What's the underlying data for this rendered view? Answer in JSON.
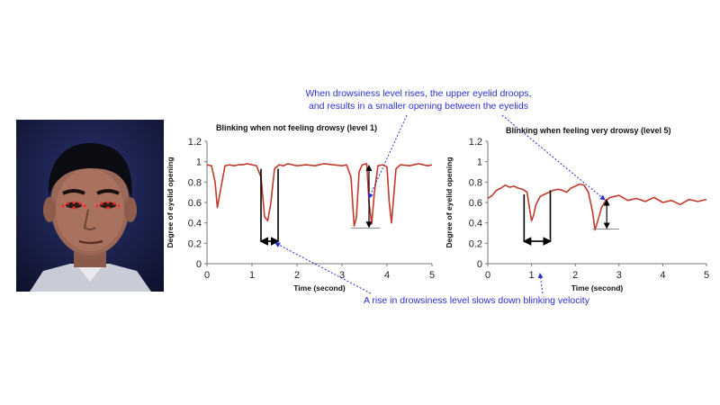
{
  "annotations": {
    "top_line1": "When drowsiness level rises, the upper eyelid droops,",
    "top_line2": "and results in a smaller opening between the eyelids",
    "bottom": "A rise in drowsiness level slows down blinking velocity"
  },
  "colors": {
    "curve": "#c0392b",
    "annotation": "#2a2fcc",
    "marker": "#000000",
    "face_dots": "#ff2a2a"
  },
  "photo": {
    "icon": "driver-face-photo"
  },
  "chart_data": [
    {
      "type": "line",
      "title": "Blinking when not feeling drowsy (level 1)",
      "xlabel": "Time (second)",
      "ylabel": "Degree of eyelid opening",
      "xlim": [
        0,
        5
      ],
      "ylim": [
        0,
        1.2
      ],
      "xticks": [
        0,
        1,
        2,
        3,
        4,
        5
      ],
      "yticks": [
        0,
        0.2,
        0.4,
        0.6,
        0.8,
        1,
        1.2
      ],
      "grid": false,
      "series": [
        {
          "x": [
            0,
            0.1,
            0.18,
            0.23,
            0.3,
            0.4,
            0.5,
            0.6,
            0.7,
            0.8,
            0.9,
            1.0,
            1.1,
            1.2,
            1.28,
            1.35,
            1.42,
            1.5,
            1.6,
            1.7,
            1.8,
            1.9,
            2.0,
            2.2,
            2.4,
            2.6,
            2.8,
            3.0,
            3.1,
            3.2,
            3.27,
            3.32,
            3.38,
            3.45,
            3.55,
            3.6,
            3.66,
            3.72,
            3.8,
            3.9,
            4.0,
            4.05,
            4.1,
            4.2,
            4.3,
            4.5,
            4.7,
            4.9,
            5.0
          ],
          "y": [
            0.97,
            0.96,
            0.8,
            0.55,
            0.72,
            0.96,
            0.97,
            0.96,
            0.97,
            0.97,
            0.98,
            0.97,
            0.96,
            0.85,
            0.46,
            0.42,
            0.6,
            0.93,
            0.97,
            0.96,
            0.98,
            0.97,
            0.96,
            0.97,
            0.96,
            0.98,
            0.97,
            0.96,
            0.97,
            0.85,
            0.37,
            0.45,
            0.9,
            0.97,
            0.98,
            0.6,
            0.39,
            0.7,
            0.96,
            0.97,
            0.95,
            0.6,
            0.4,
            0.93,
            0.97,
            0.96,
            0.98,
            0.96,
            0.97
          ]
        }
      ]
    },
    {
      "type": "line",
      "title": "Blinking when feeling very drowsy (level 5)",
      "xlabel": "Time (second)",
      "ylabel": "Degree of eyelid opening",
      "xlim": [
        0,
        5
      ],
      "ylim": [
        0,
        1.2
      ],
      "xticks": [
        0,
        1,
        2,
        3,
        4,
        5
      ],
      "yticks": [
        0,
        0.2,
        0.4,
        0.6,
        0.8,
        1,
        1.2
      ],
      "grid": false,
      "series": [
        {
          "x": [
            0,
            0.1,
            0.2,
            0.3,
            0.4,
            0.5,
            0.6,
            0.7,
            0.8,
            0.9,
            0.95,
            1.0,
            1.05,
            1.1,
            1.2,
            1.3,
            1.4,
            1.5,
            1.6,
            1.7,
            1.8,
            1.9,
            2.0,
            2.1,
            2.2,
            2.3,
            2.4,
            2.45,
            2.5,
            2.6,
            2.7,
            2.8,
            2.9,
            3.0,
            3.2,
            3.4,
            3.6,
            3.8,
            4.0,
            4.2,
            4.4,
            4.6,
            4.8,
            5.0
          ],
          "y": [
            0.64,
            0.67,
            0.72,
            0.74,
            0.77,
            0.75,
            0.76,
            0.74,
            0.73,
            0.7,
            0.55,
            0.42,
            0.48,
            0.58,
            0.66,
            0.68,
            0.7,
            0.72,
            0.73,
            0.72,
            0.7,
            0.74,
            0.76,
            0.78,
            0.77,
            0.7,
            0.5,
            0.33,
            0.4,
            0.55,
            0.62,
            0.65,
            0.66,
            0.67,
            0.62,
            0.64,
            0.61,
            0.65,
            0.6,
            0.62,
            0.58,
            0.63,
            0.61,
            0.63
          ]
        }
      ]
    }
  ]
}
